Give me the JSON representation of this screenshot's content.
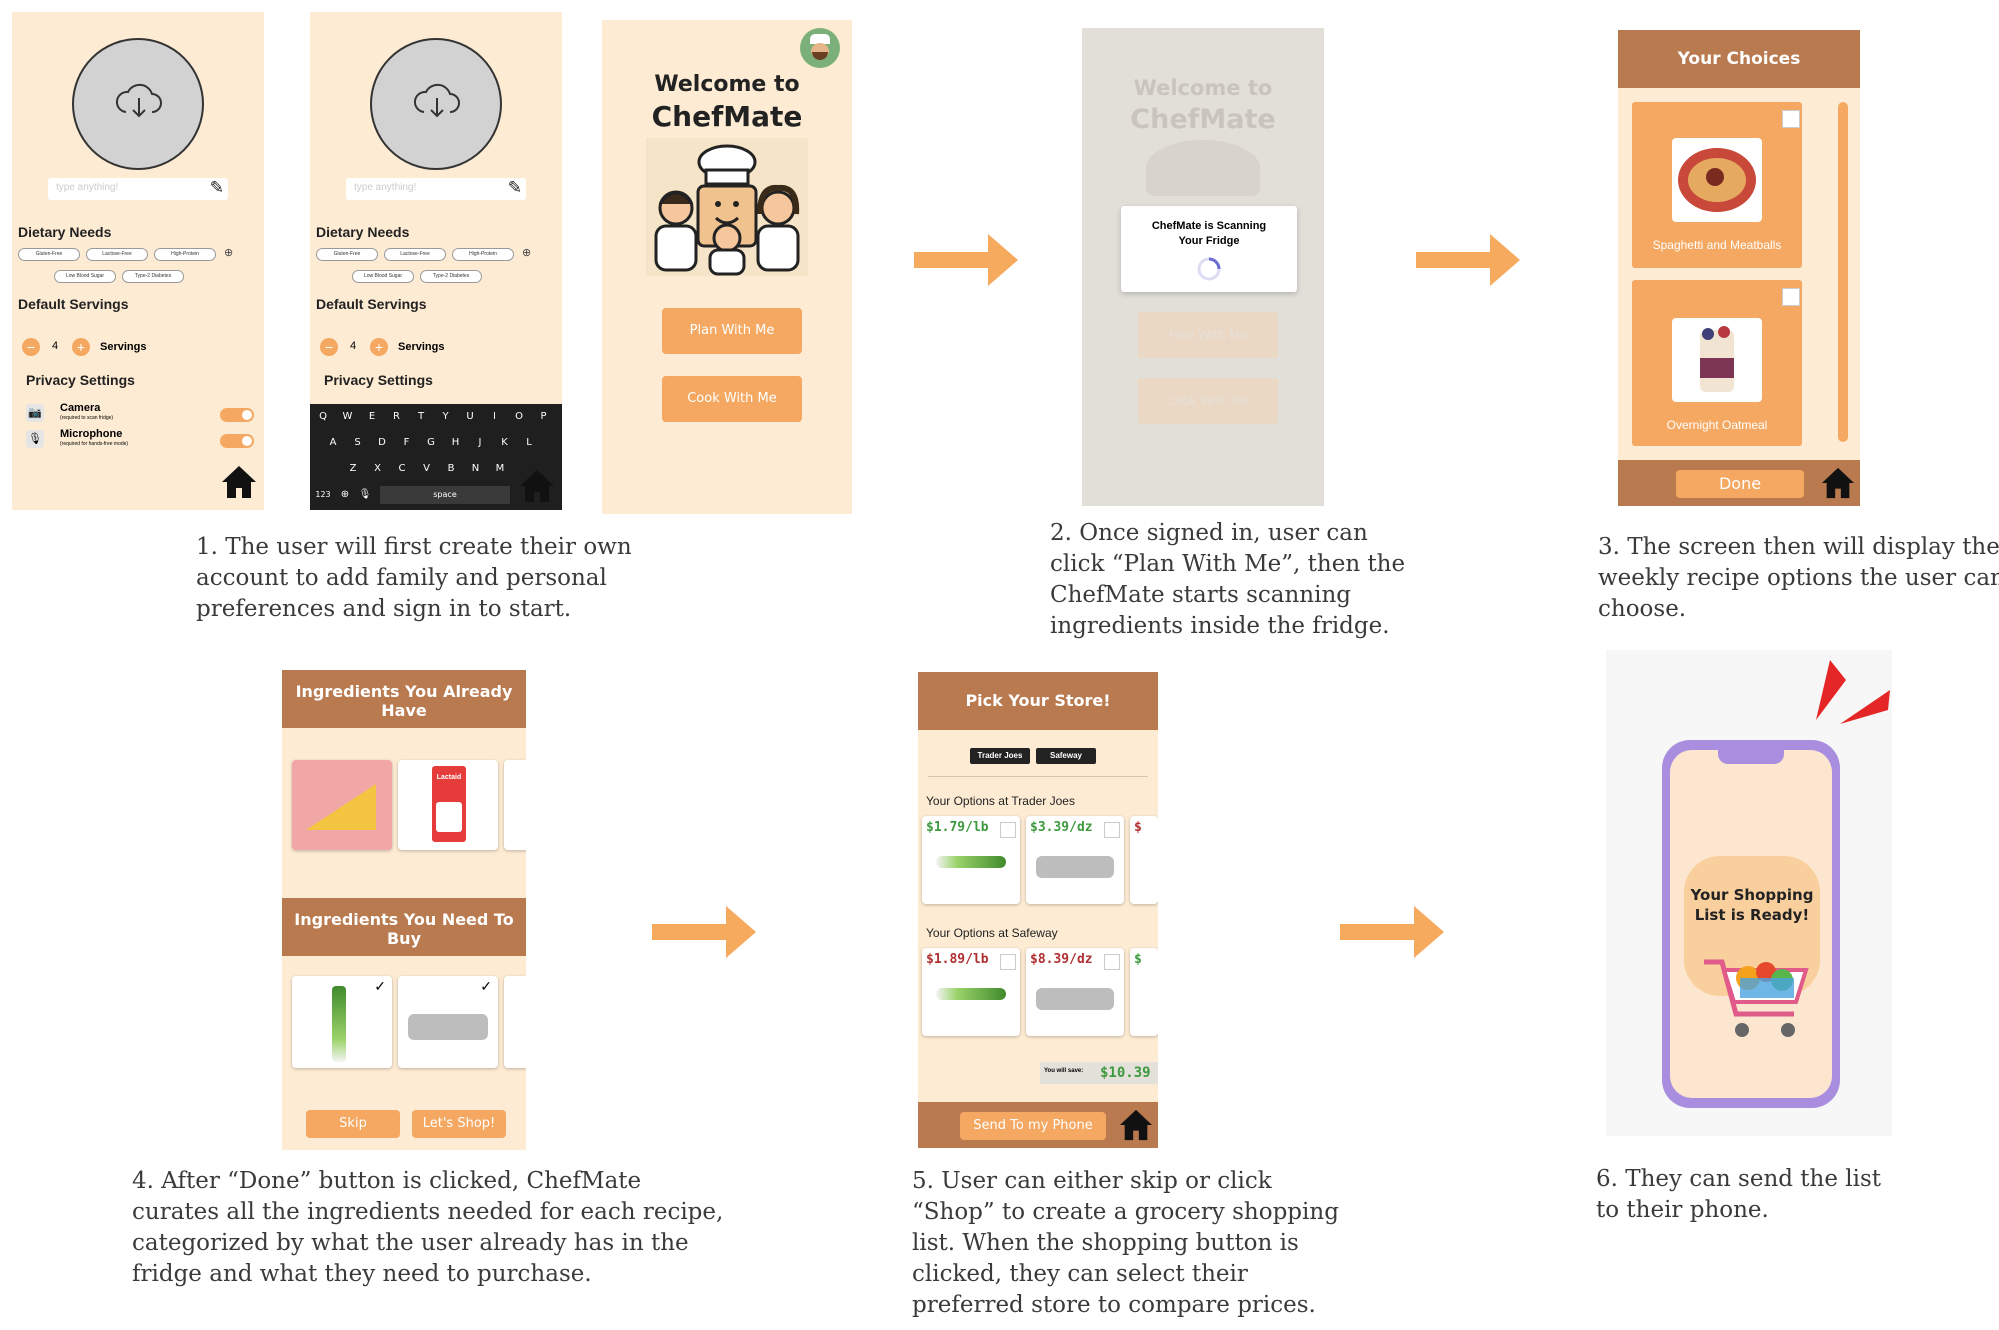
{
  "screen1": {
    "input_placeholder": "type anything!",
    "dietary_title": "Dietary Needs",
    "dietary_pills": [
      "Gluten-Free",
      "Lactose-Free",
      "High-Protein",
      "Low Blood Sugar",
      "Type-2 Diabetes"
    ],
    "servings_title": "Default Servings",
    "servings_value": "4",
    "servings_label": "Servings",
    "privacy_title": "Privacy Settings",
    "camera_label": "Camera",
    "camera_sub": "(required to scan fridge)",
    "mic_label": "Microphone",
    "mic_sub": "(required for hands-free mode)"
  },
  "screen2": {
    "input_placeholder": "type anything!",
    "dietary_title": "Dietary Needs",
    "dietary_pills": [
      "Gluten-Free",
      "Lactose-Free",
      "High-Protein",
      "Low Blood Sugar",
      "Type-2 Diabetes"
    ],
    "servings_title": "Default Servings",
    "servings_value": "4",
    "servings_label": "Servings",
    "privacy_title": "Privacy Settings",
    "keyboard_rows": [
      [
        "Q",
        "W",
        "E",
        "R",
        "T",
        "Y",
        "U",
        "I",
        "O",
        "P"
      ],
      [
        "A",
        "S",
        "D",
        "F",
        "G",
        "H",
        "J",
        "K",
        "L"
      ],
      [
        "Z",
        "X",
        "C",
        "V",
        "B",
        "N",
        "M"
      ]
    ],
    "key_123": "123",
    "key_space": "space"
  },
  "screen3": {
    "welcome_line1": "Welcome to",
    "welcome_line2": "ChefMate",
    "plan_button": "Plan With Me",
    "cook_button": "Cook With Me"
  },
  "screen4": {
    "welcome_line1": "Welcome to",
    "welcome_line2": "ChefMate",
    "plan_button": "Plan With Me",
    "cook_button": "Cook With Me",
    "modal_line1": "ChefMate is Scanning",
    "modal_line2": "Your Fridge"
  },
  "screen5": {
    "header": "Your Choices",
    "recipes": [
      "Spaghetti and Meatballs",
      "Overnight Oatmeal"
    ],
    "done_button": "Done"
  },
  "screen6": {
    "have_header_line1": "Ingredients You Already",
    "have_header_line2": "Have",
    "buy_header_line1": "Ingredients You Need To",
    "buy_header_line2": "Buy",
    "skip_button": "Skip",
    "shop_button": "Let's Shop!",
    "milk_brand": "Lactaid"
  },
  "screen7": {
    "header": "Pick Your Store!",
    "stores": [
      "Trader Joes",
      "Safeway"
    ],
    "section1": "Your Options at Trader Joes",
    "section1_prices": [
      "$1.79/lb",
      "$3.39/dz",
      "$"
    ],
    "section2": "Your Options at Safeway",
    "section2_prices": [
      "$1.89/lb",
      "$8.39/dz",
      "$"
    ],
    "save_label": "You will save:",
    "save_value": "$10.39",
    "send_button": "Send To my Phone"
  },
  "screen8": {
    "bubble_line1": "Your Shopping",
    "bubble_line2": "List is Ready!"
  },
  "captions": {
    "c1": [
      "1. The user will first create their own",
      "account to add family and personal",
      "preferences and sign in to start."
    ],
    "c2": [
      "2. Once signed in, user can",
      "click “Plan With Me”, then the",
      "ChefMate starts scanning",
      "ingredients inside the fridge."
    ],
    "c3": [
      "3. The screen then will display the",
      "weekly recipe options the user can",
      "choose."
    ],
    "c4": [
      "4. After “Done” button is clicked, ChefMate",
      "curates all the ingredients needed for each recipe,",
      "categorized by what the user already has in the",
      "fridge and what they need to purchase."
    ],
    "c5": [
      "5. User can either skip or click",
      "“Shop” to create a grocery shopping",
      "list. When the shopping button is",
      "clicked, they can select their",
      "preferred store to compare prices."
    ],
    "c6": [
      "6. They can send the list",
      "to their phone."
    ]
  },
  "colors": {
    "cream": "#fdebd3",
    "orange": "#f4a861",
    "brown_header": "#b97a4f",
    "arrow": "#f6aa5e",
    "phone_purple": "#a98ee0"
  }
}
